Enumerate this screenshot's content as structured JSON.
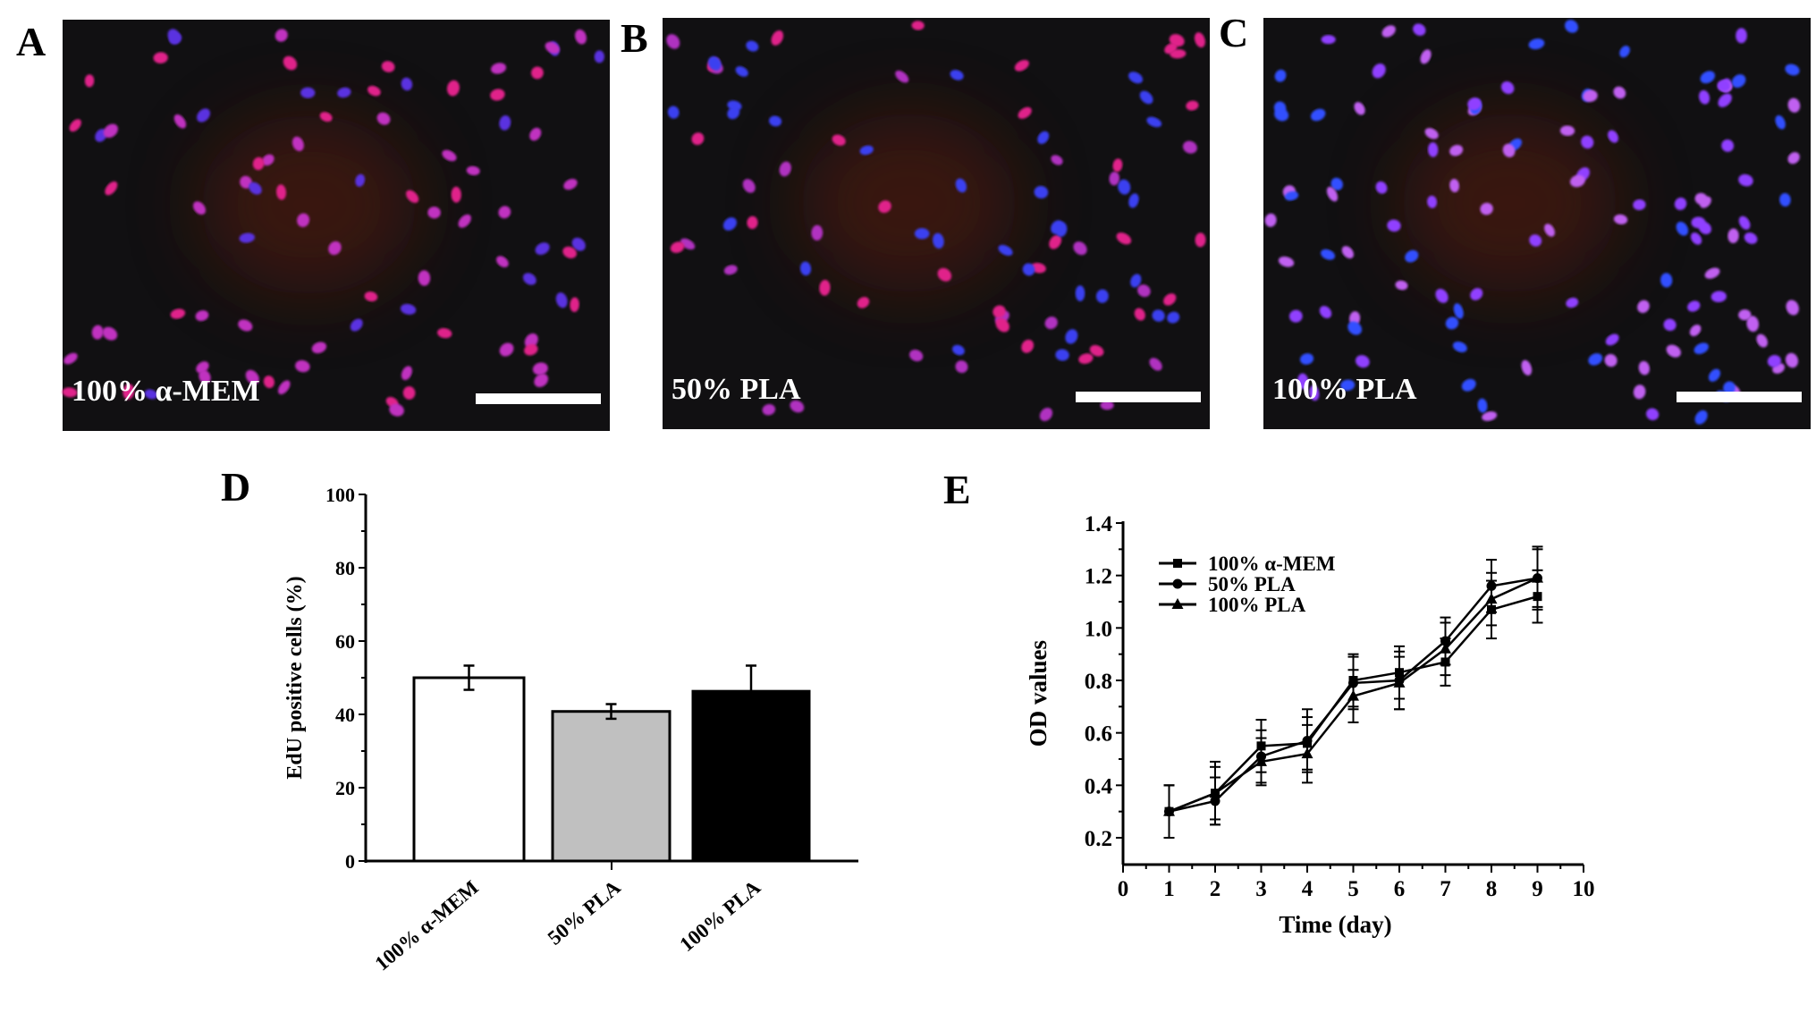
{
  "panels": [
    {
      "letter": "A",
      "label": "100% α-MEM",
      "nucleus_colors": [
        "#e0208a",
        "#5a30e0",
        "#c030c0"
      ]
    },
    {
      "letter": "B",
      "label": "50% PLA",
      "nucleus_colors": [
        "#e0208a",
        "#3a40f0",
        "#b030c0"
      ]
    },
    {
      "letter": "C",
      "label": "100% PLA",
      "nucleus_colors": [
        "#c060f0",
        "#3050ff",
        "#9040ff"
      ]
    }
  ],
  "chart_data": [
    {
      "letter": "D",
      "type": "bar",
      "categories": [
        "100% α-MEM",
        "50% PLA",
        "100% PLA"
      ],
      "values": [
        50.0,
        40.8,
        46.3
      ],
      "errors": [
        3.3,
        2.0,
        7.0
      ],
      "colors": [
        "#ffffff",
        "#c0c0c0",
        "#000000"
      ],
      "ylabel": "EdU positive cells (%)",
      "xlabel": "",
      "ylim": [
        0,
        100
      ],
      "yticks": [
        "0",
        "20",
        "40",
        "60",
        "80",
        "100"
      ]
    },
    {
      "letter": "E",
      "type": "line",
      "x": [
        1,
        2,
        3,
        4,
        5,
        6,
        7,
        8,
        9
      ],
      "series": [
        {
          "name": "100% α-MEM",
          "marker": "square",
          "values": [
            0.3,
            0.37,
            0.55,
            0.56,
            0.8,
            0.83,
            0.87,
            1.07,
            1.12
          ],
          "errors": [
            0.1,
            0.12,
            0.1,
            0.1,
            0.1,
            0.1,
            0.09,
            0.11,
            0.1
          ]
        },
        {
          "name": "50% PLA",
          "marker": "circle",
          "values": [
            0.3,
            0.34,
            0.51,
            0.57,
            0.79,
            0.8,
            0.95,
            1.16,
            1.19
          ],
          "errors": [
            0.1,
            0.09,
            0.1,
            0.12,
            0.1,
            0.11,
            0.09,
            0.1,
            0.11
          ]
        },
        {
          "name": "100% PLA",
          "marker": "triangle",
          "values": [
            0.3,
            0.37,
            0.49,
            0.52,
            0.74,
            0.79,
            0.92,
            1.11,
            1.19
          ],
          "errors": [
            0.1,
            0.1,
            0.09,
            0.11,
            0.1,
            0.1,
            0.1,
            0.1,
            0.12
          ]
        }
      ],
      "xlabel": "Time (day)",
      "ylabel": "OD values",
      "xlim": [
        0,
        10
      ],
      "ylim": [
        0.1,
        1.4
      ],
      "xticks": [
        "0",
        "1",
        "2",
        "3",
        "4",
        "5",
        "6",
        "7",
        "8",
        "9",
        "10"
      ],
      "yticks": [
        "0.2",
        "0.4",
        "0.6",
        "0.8",
        "1.0",
        "1.2",
        "1.4"
      ],
      "legend": "top-left"
    }
  ]
}
